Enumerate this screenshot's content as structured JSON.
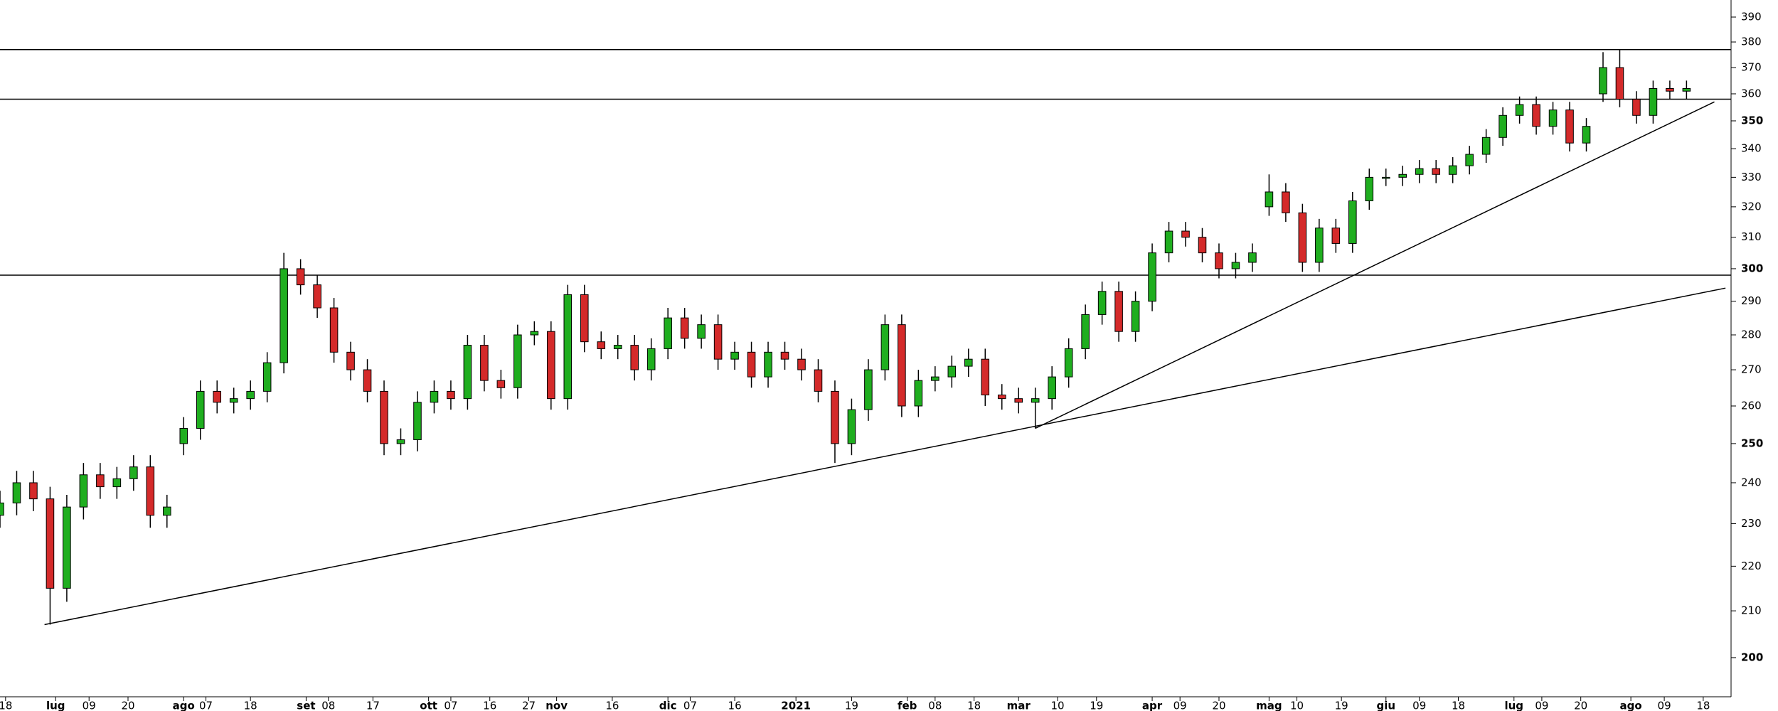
{
  "chart_data": {
    "type": "candlestick",
    "log_scale": true,
    "up_color": "#1fae1f",
    "down_color": "#d42a2a",
    "line_color": "#000000",
    "x": [
      0,
      3,
      6,
      9,
      12,
      15,
      18,
      21,
      24,
      27,
      30,
      33,
      36,
      39,
      42,
      45,
      48,
      51,
      54,
      57,
      60,
      63,
      66,
      69,
      72,
      75,
      78,
      81,
      84,
      87,
      90,
      93,
      96,
      99,
      102,
      105,
      108,
      111,
      114,
      117,
      120,
      123,
      126,
      129,
      132,
      135,
      138,
      141,
      144,
      147,
      150,
      153,
      156,
      159,
      162,
      165,
      168,
      171,
      174,
      177,
      180,
      183,
      186,
      189,
      192,
      195,
      198,
      201,
      204,
      207,
      210,
      213,
      216,
      219,
      222,
      225,
      228,
      231,
      234,
      237,
      240,
      243,
      246,
      249,
      252,
      255,
      258,
      261,
      264,
      267,
      270,
      273,
      276,
      279,
      282,
      285,
      288,
      291,
      294,
      297,
      300,
      303
    ],
    "open": [
      232,
      235,
      240,
      236,
      215,
      234,
      242,
      239,
      241,
      244,
      232,
      250,
      254,
      264,
      261,
      262,
      264,
      272,
      300,
      295,
      288,
      275,
      270,
      264,
      250,
      251,
      261,
      264,
      262,
      277,
      267,
      265,
      280,
      281,
      262,
      292,
      278,
      276,
      277,
      270,
      276,
      285,
      279,
      283,
      273,
      275,
      268,
      275,
      273,
      270,
      264,
      250,
      259,
      270,
      283,
      260,
      267,
      268,
      271,
      273,
      263,
      262,
      261,
      262,
      268,
      276,
      286,
      293,
      281,
      290,
      305,
      312,
      310,
      305,
      300,
      302,
      320,
      325,
      318,
      302,
      313,
      308,
      322,
      330,
      330,
      331,
      333,
      331,
      334,
      338,
      344,
      352,
      356,
      348,
      354,
      342,
      360,
      370,
      358,
      352,
      362,
      361
    ],
    "high": [
      238,
      243,
      243,
      239,
      237,
      245,
      245,
      244,
      247,
      247,
      237,
      257,
      267,
      267,
      265,
      267,
      275,
      305,
      303,
      298,
      291,
      278,
      273,
      267,
      254,
      264,
      267,
      267,
      280,
      280,
      270,
      283,
      284,
      284,
      295,
      295,
      281,
      280,
      280,
      279,
      288,
      288,
      286,
      286,
      278,
      278,
      278,
      278,
      276,
      273,
      267,
      262,
      273,
      286,
      286,
      270,
      271,
      274,
      276,
      276,
      266,
      265,
      265,
      271,
      279,
      289,
      296,
      296,
      293,
      308,
      315,
      315,
      313,
      308,
      305,
      308,
      331,
      328,
      321,
      316,
      316,
      325,
      333,
      333,
      334,
      336,
      336,
      337,
      341,
      347,
      355,
      359,
      359,
      357,
      357,
      351,
      376,
      377,
      361,
      365,
      365,
      365
    ],
    "low": [
      229,
      232,
      233,
      207,
      212,
      231,
      236,
      236,
      238,
      229,
      229,
      247,
      251,
      258,
      258,
      259,
      261,
      269,
      292,
      285,
      272,
      267,
      261,
      247,
      247,
      248,
      258,
      259,
      259,
      264,
      262,
      262,
      277,
      259,
      259,
      275,
      273,
      273,
      267,
      267,
      273,
      276,
      276,
      270,
      270,
      265,
      265,
      270,
      267,
      261,
      245,
      247,
      256,
      267,
      257,
      257,
      264,
      265,
      268,
      260,
      259,
      258,
      254,
      259,
      265,
      273,
      283,
      278,
      278,
      287,
      302,
      307,
      302,
      297,
      297,
      299,
      317,
      315,
      299,
      299,
      305,
      305,
      319,
      327,
      327,
      328,
      328,
      328,
      331,
      335,
      341,
      349,
      345,
      345,
      339,
      339,
      357,
      355,
      349,
      349,
      358,
      358
    ],
    "close": [
      235,
      240,
      236,
      215,
      234,
      242,
      239,
      241,
      244,
      232,
      234,
      254,
      264,
      261,
      262,
      264,
      272,
      300,
      295,
      288,
      275,
      270,
      264,
      250,
      251,
      261,
      264,
      262,
      277,
      267,
      265,
      280,
      281,
      262,
      292,
      278,
      276,
      277,
      270,
      276,
      285,
      279,
      283,
      273,
      275,
      268,
      275,
      273,
      270,
      264,
      250,
      259,
      270,
      283,
      260,
      267,
      268,
      271,
      273,
      263,
      262,
      261,
      262,
      268,
      276,
      286,
      293,
      281,
      290,
      305,
      312,
      310,
      305,
      300,
      302,
      305,
      325,
      318,
      302,
      313,
      308,
      322,
      330,
      330,
      331,
      333,
      331,
      334,
      338,
      344,
      352,
      356,
      348,
      354,
      342,
      348,
      370,
      358,
      352,
      362,
      361,
      362
    ],
    "hlines": [
      377,
      358,
      298
    ],
    "trendlines": [
      {
        "x": [
          8,
          310
        ],
        "y": [
          207,
          294
        ]
      },
      {
        "x": [
          186,
          308
        ],
        "y": [
          254,
          357
        ]
      }
    ],
    "xlim": [
      0,
      311
    ],
    "ylim": [
      192,
      397
    ],
    "yticks": [
      200,
      210,
      220,
      230,
      240,
      250,
      260,
      270,
      280,
      290,
      300,
      310,
      320,
      330,
      340,
      350,
      360,
      370,
      380,
      390
    ],
    "xticks": [
      {
        "value": 1,
        "label": "18"
      },
      {
        "value": 10,
        "label": "lug"
      },
      {
        "value": 16,
        "label": "09"
      },
      {
        "value": 23,
        "label": "20"
      },
      {
        "value": 33,
        "label": "ago"
      },
      {
        "value": 37,
        "label": "07"
      },
      {
        "value": 45,
        "label": "18"
      },
      {
        "value": 55,
        "label": "set"
      },
      {
        "value": 59,
        "label": "08"
      },
      {
        "value": 67,
        "label": "17"
      },
      {
        "value": 77,
        "label": "ott"
      },
      {
        "value": 81,
        "label": "07"
      },
      {
        "value": 88,
        "label": "16"
      },
      {
        "value": 95,
        "label": "27"
      },
      {
        "value": 100,
        "label": "nov"
      },
      {
        "value": 110,
        "label": "16"
      },
      {
        "value": 120,
        "label": "dic"
      },
      {
        "value": 124,
        "label": "07"
      },
      {
        "value": 132,
        "label": "16"
      },
      {
        "value": 143,
        "label": "2021"
      },
      {
        "value": 153,
        "label": "19"
      },
      {
        "value": 163,
        "label": "feb"
      },
      {
        "value": 168,
        "label": "08"
      },
      {
        "value": 175,
        "label": "18"
      },
      {
        "value": 183,
        "label": "mar"
      },
      {
        "value": 190,
        "label": "10"
      },
      {
        "value": 197,
        "label": "19"
      },
      {
        "value": 207,
        "label": "apr"
      },
      {
        "value": 212,
        "label": "09"
      },
      {
        "value": 219,
        "label": "20"
      },
      {
        "value": 228,
        "label": "mag"
      },
      {
        "value": 233,
        "label": "10"
      },
      {
        "value": 241,
        "label": "19"
      },
      {
        "value": 249,
        "label": "giu"
      },
      {
        "value": 255,
        "label": "09"
      },
      {
        "value": 262,
        "label": "18"
      },
      {
        "value": 272,
        "label": "lug"
      },
      {
        "value": 277,
        "label": "09"
      },
      {
        "value": 284,
        "label": "20"
      },
      {
        "value": 293,
        "label": "ago"
      },
      {
        "value": 299,
        "label": "09"
      },
      {
        "value": 306,
        "label": "18"
      }
    ]
  }
}
